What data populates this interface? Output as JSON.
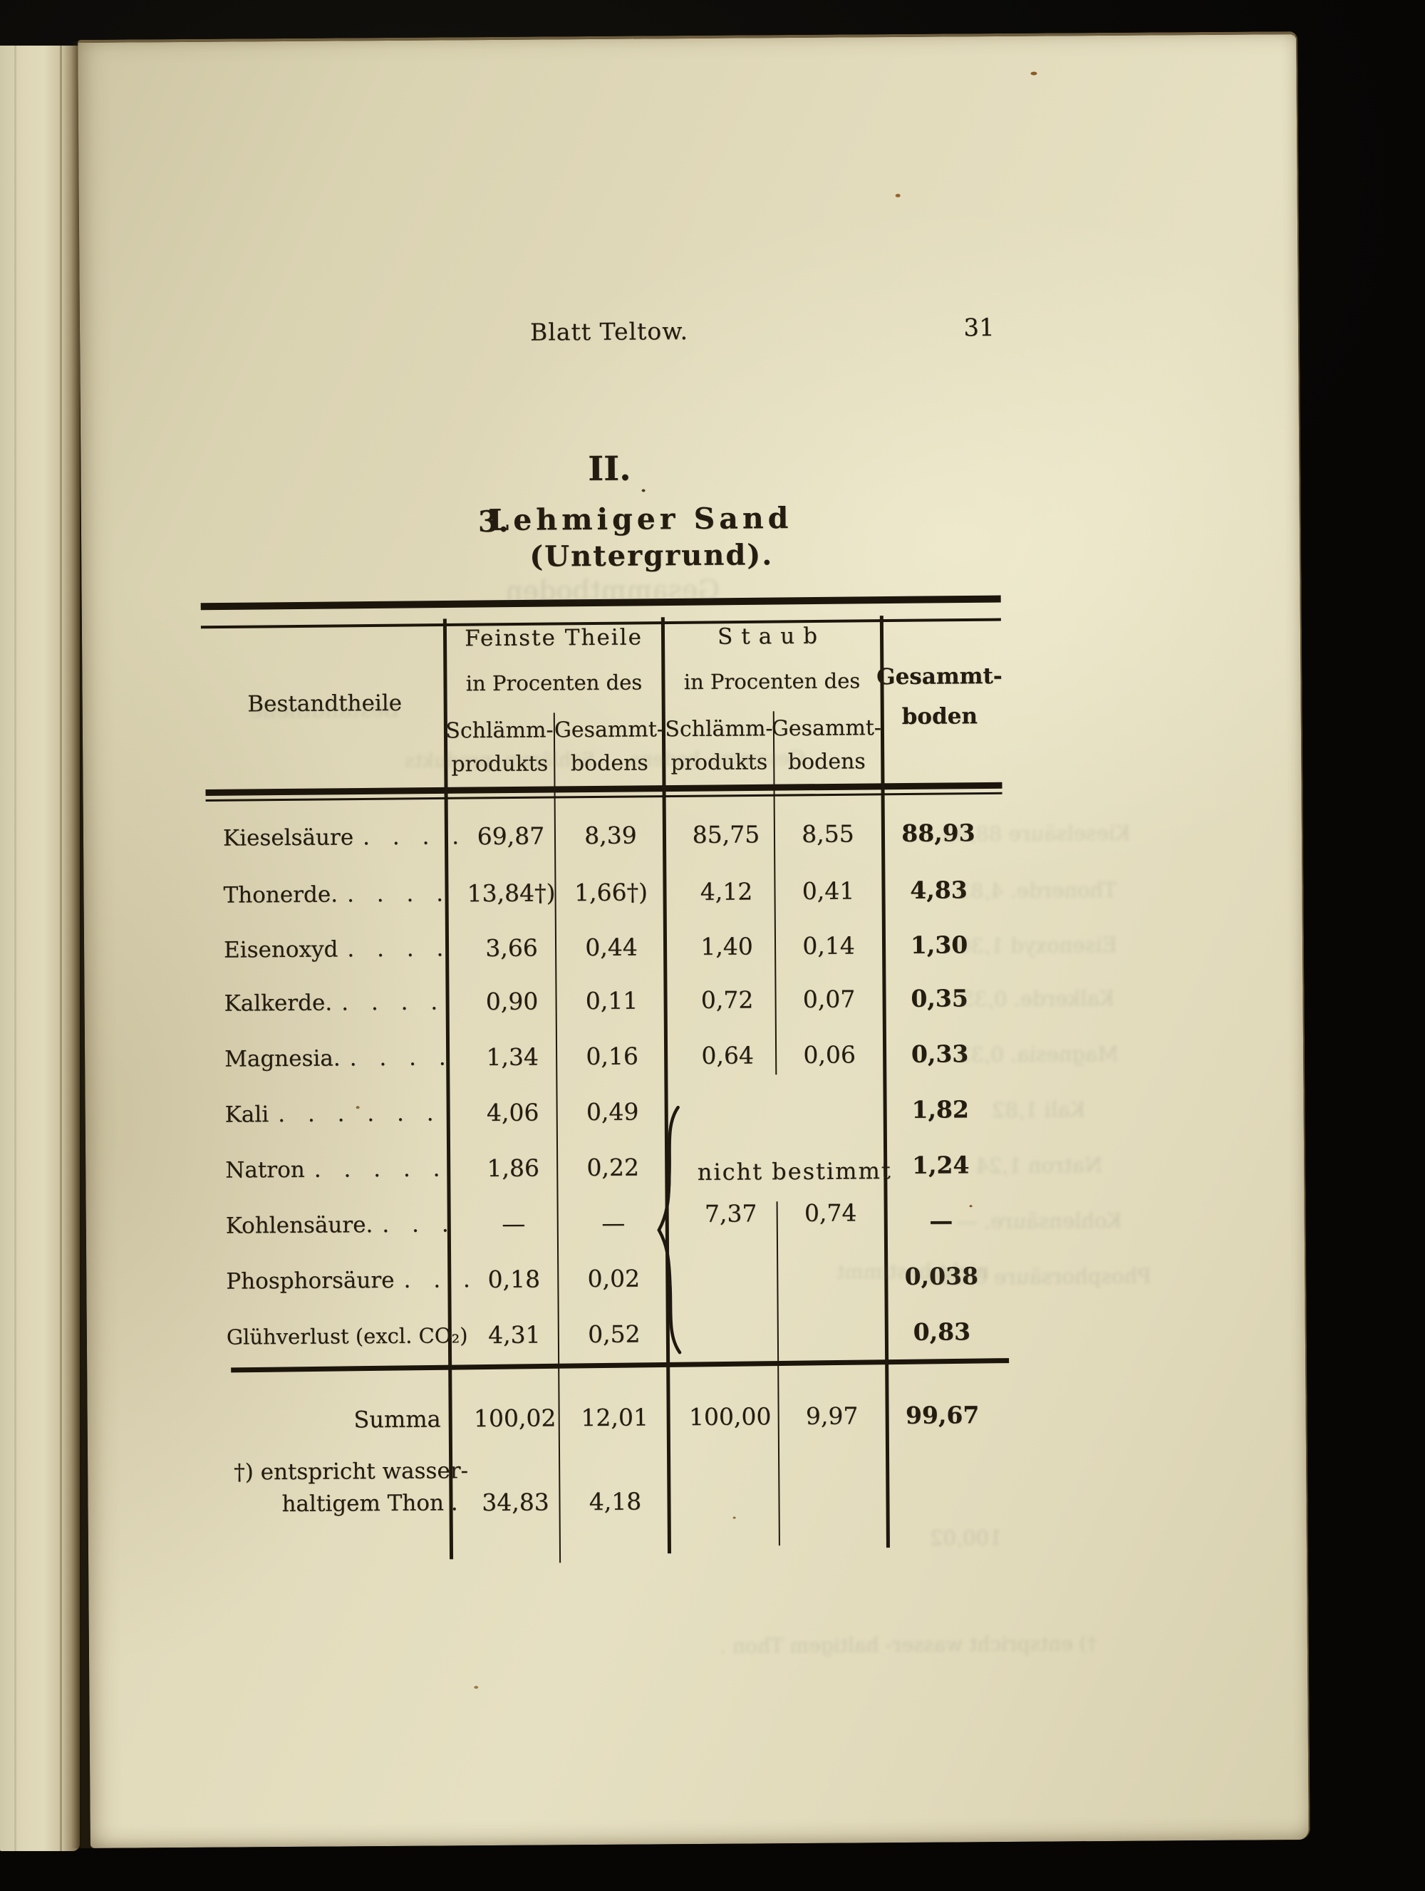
{
  "page": {
    "running_head": "Blatt Teltow.",
    "page_number": "31",
    "section_numeral": "II.",
    "title_number": "3.",
    "title": "Lehmiger Sand",
    "subtitle": "(Untergrund).",
    "ink_color": "#241c10",
    "paper_color": "#ded7b7"
  },
  "table": {
    "header": {
      "component_label": "Bestandtheile",
      "group1_title": "Feinste Theile",
      "group1_subtitle": "in Procenten des",
      "group2_title": "Staub",
      "group2_subtitle": "in Procenten des",
      "subcols": [
        {
          "line1": "Schlämm-",
          "line2": "produkts"
        },
        {
          "line1": "Gesammt-",
          "line2": "bodens"
        },
        {
          "line1": "Schlämm-",
          "line2": "produkts"
        },
        {
          "line1": "Gesammt-",
          "line2": "bodens"
        }
      ],
      "total_line1": "Gesammt-",
      "total_line2": "boden"
    },
    "rows": [
      {
        "label": "Kieselsäure",
        "dots": ". . . .",
        "ft_s": "69,87",
        "ft_g": "8,39",
        "st_s": "85,75",
        "st_g": "8,55",
        "total": "88,93"
      },
      {
        "label": "Thonerde.",
        "dots": ". . . .",
        "ft_s": "13,84†)",
        "ft_g": "1,66†)",
        "st_s": "4,12",
        "st_g": "0,41",
        "total": "4,83"
      },
      {
        "label": "Eisenoxyd",
        "dots": ". . . .",
        "ft_s": "3,66",
        "ft_g": "0,44",
        "st_s": "1,40",
        "st_g": "0,14",
        "total": "1,30"
      },
      {
        "label": "Kalkerde.",
        "dots": ". . . .",
        "ft_s": "0,90",
        "ft_g": "0,11",
        "st_s": "0,72",
        "st_g": "0,07",
        "total": "0,35"
      },
      {
        "label": "Magnesia.",
        "dots": ". . . .",
        "ft_s": "1,34",
        "ft_g": "0,16",
        "st_s": "0,64",
        "st_g": "0,06",
        "total": "0,33"
      },
      {
        "label": "Kali",
        "dots": ". . . . . .",
        "ft_s": "4,06",
        "ft_g": "0,49",
        "st_s": "",
        "st_g": "",
        "total": "1,82"
      },
      {
        "label": "Natron",
        "dots": ". . . . .",
        "ft_s": "1,86",
        "ft_g": "0,22",
        "st_s": "",
        "st_g": "",
        "total": "1,24"
      },
      {
        "label": "Kohlensäure.",
        "dots": ". . .",
        "ft_s": "—",
        "ft_g": "—",
        "st_s": "",
        "st_g": "",
        "total": "—"
      },
      {
        "label": "Phosphorsäure",
        "dots": ". . .",
        "ft_s": "0,18",
        "ft_g": "0,02",
        "st_s": "",
        "st_g": "",
        "total": "0,038"
      },
      {
        "label": "Glühverlust (excl. CO₂)",
        "dots": "",
        "ft_s": "4,31",
        "ft_g": "0,52",
        "st_s": "",
        "st_g": "",
        "total": "0,83"
      }
    ],
    "staub_note": "nicht bestimmt",
    "staub_values": {
      "schlaemm": "7,37",
      "gesammt": "0,74"
    },
    "summa": {
      "label": "Summa",
      "ft_s": "100,02",
      "ft_g": "12,01",
      "st_s": "100,00",
      "st_g": "9,97",
      "total": "99,67"
    },
    "footnote": {
      "line1": "†) entspricht wasser-",
      "line2": "haltigem Thon .",
      "ft_s": "34,83",
      "ft_g": "4,18"
    }
  }
}
